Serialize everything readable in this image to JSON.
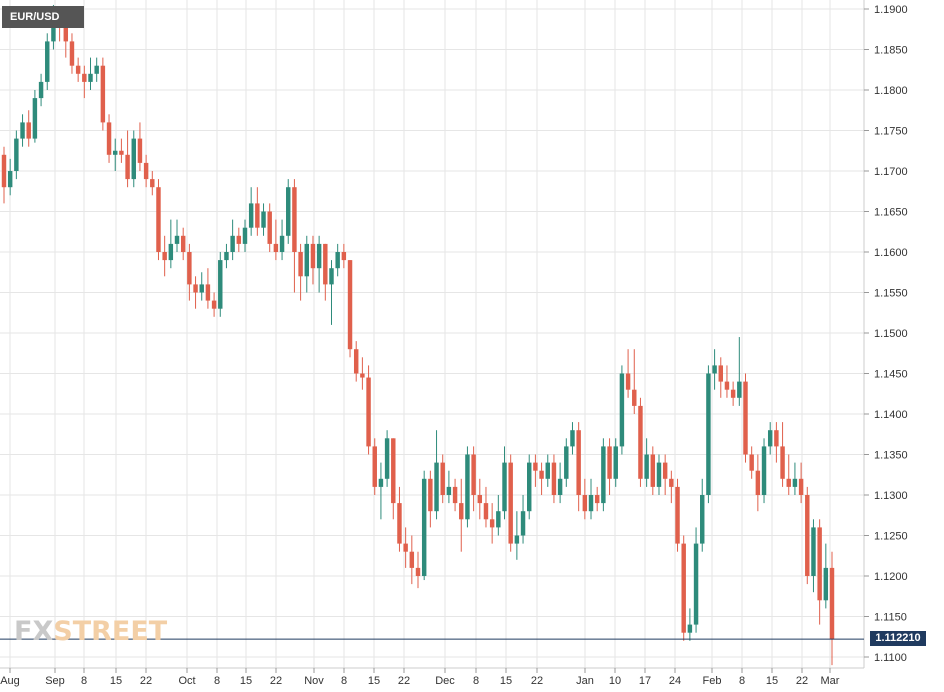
{
  "chart_data": {
    "type": "candlestick",
    "symbol": "EUR/USD",
    "ylim": [
      1.108,
      1.191
    ],
    "y_ticks": [
      "1.1900",
      "1.1850",
      "1.1800",
      "1.1750",
      "1.1700",
      "1.1650",
      "1.1600",
      "1.1550",
      "1.1500",
      "1.1450",
      "1.1400",
      "1.1350",
      "1.1300",
      "1.1250",
      "1.1200",
      "1.1150",
      "1.1100"
    ],
    "x_labels": [
      "Aug",
      "Sep",
      "8",
      "15",
      "22",
      "Oct",
      "8",
      "15",
      "22",
      "Nov",
      "8",
      "15",
      "22",
      "Dec",
      "8",
      "15",
      "22",
      "Jan",
      "10",
      "17",
      "24",
      "Feb",
      "8",
      "15",
      "22",
      "Mar"
    ],
    "last_price": "1.112210",
    "colors": {
      "up": "#2e8b7b",
      "down": "#e0604c",
      "grid": "#e6e6e6",
      "price_line": "#1f3a5f"
    },
    "candles": [
      [
        1.172,
        1.168,
        1.173,
        1.166
      ],
      [
        1.168,
        1.17,
        1.1715,
        1.167
      ],
      [
        1.17,
        1.174,
        1.175,
        1.169
      ],
      [
        1.174,
        1.176,
        1.177,
        1.173
      ],
      [
        1.176,
        1.174,
        1.1775,
        1.173
      ],
      [
        1.174,
        1.179,
        1.18,
        1.1735
      ],
      [
        1.179,
        1.181,
        1.182,
        1.178
      ],
      [
        1.181,
        1.186,
        1.187,
        1.18
      ],
      [
        1.186,
        1.189,
        1.1905,
        1.185
      ],
      [
        1.189,
        1.188,
        1.19,
        1.186
      ],
      [
        1.188,
        1.186,
        1.189,
        1.184
      ],
      [
        1.186,
        1.183,
        1.187,
        1.182
      ],
      [
        1.183,
        1.182,
        1.184,
        1.181
      ],
      [
        1.182,
        1.181,
        1.183,
        1.179
      ],
      [
        1.181,
        1.182,
        1.184,
        1.18
      ],
      [
        1.182,
        1.183,
        1.184,
        1.181
      ],
      [
        1.183,
        1.176,
        1.184,
        1.175
      ],
      [
        1.176,
        1.172,
        1.177,
        1.171
      ],
      [
        1.172,
        1.1725,
        1.174,
        1.17
      ],
      [
        1.1725,
        1.172,
        1.174,
        1.171
      ],
      [
        1.172,
        1.169,
        1.175,
        1.168
      ],
      [
        1.169,
        1.174,
        1.175,
        1.168
      ],
      [
        1.174,
        1.171,
        1.176,
        1.17
      ],
      [
        1.171,
        1.169,
        1.172,
        1.168
      ],
      [
        1.169,
        1.168,
        1.17,
        1.167
      ],
      [
        1.168,
        1.16,
        1.169,
        1.159
      ],
      [
        1.16,
        1.159,
        1.162,
        1.157
      ],
      [
        1.159,
        1.161,
        1.164,
        1.158
      ],
      [
        1.161,
        1.162,
        1.164,
        1.16
      ],
      [
        1.162,
        1.16,
        1.163,
        1.159
      ],
      [
        1.16,
        1.156,
        1.161,
        1.154
      ],
      [
        1.156,
        1.155,
        1.157,
        1.153
      ],
      [
        1.155,
        1.156,
        1.1575,
        1.154
      ],
      [
        1.156,
        1.154,
        1.158,
        1.153
      ],
      [
        1.154,
        1.153,
        1.155,
        1.152
      ],
      [
        1.153,
        1.159,
        1.16,
        1.152
      ],
      [
        1.159,
        1.16,
        1.161,
        1.158
      ],
      [
        1.16,
        1.162,
        1.164,
        1.159
      ],
      [
        1.162,
        1.161,
        1.163,
        1.16
      ],
      [
        1.161,
        1.163,
        1.164,
        1.16
      ],
      [
        1.163,
        1.166,
        1.168,
        1.162
      ],
      [
        1.166,
        1.163,
        1.168,
        1.162
      ],
      [
        1.163,
        1.165,
        1.166,
        1.162
      ],
      [
        1.165,
        1.161,
        1.166,
        1.16
      ],
      [
        1.161,
        1.16,
        1.164,
        1.159
      ],
      [
        1.16,
        1.162,
        1.164,
        1.159
      ],
      [
        1.162,
        1.168,
        1.169,
        1.161
      ],
      [
        1.168,
        1.16,
        1.169,
        1.155
      ],
      [
        1.16,
        1.157,
        1.161,
        1.154
      ],
      [
        1.157,
        1.161,
        1.162,
        1.155
      ],
      [
        1.161,
        1.158,
        1.162,
        1.156
      ],
      [
        1.158,
        1.161,
        1.162,
        1.155
      ],
      [
        1.161,
        1.156,
        1.161,
        1.154
      ],
      [
        1.156,
        1.158,
        1.159,
        1.151
      ],
      [
        1.158,
        1.16,
        1.161,
        1.157
      ],
      [
        1.16,
        1.159,
        1.161,
        1.158
      ],
      [
        1.159,
        1.148,
        1.159,
        1.147
      ],
      [
        1.148,
        1.145,
        1.149,
        1.144
      ],
      [
        1.145,
        1.1445,
        1.147,
        1.143
      ],
      [
        1.1445,
        1.136,
        1.146,
        1.135
      ],
      [
        1.136,
        1.131,
        1.137,
        1.13
      ],
      [
        1.131,
        1.132,
        1.134,
        1.127
      ],
      [
        1.132,
        1.137,
        1.138,
        1.131
      ],
      [
        1.137,
        1.129,
        1.137,
        1.127
      ],
      [
        1.129,
        1.124,
        1.131,
        1.123
      ],
      [
        1.124,
        1.123,
        1.126,
        1.121
      ],
      [
        1.123,
        1.121,
        1.125,
        1.119
      ],
      [
        1.121,
        1.12,
        1.123,
        1.1185
      ],
      [
        1.12,
        1.132,
        1.133,
        1.1195
      ],
      [
        1.132,
        1.128,
        1.133,
        1.126
      ],
      [
        1.128,
        1.134,
        1.138,
        1.127
      ],
      [
        1.134,
        1.13,
        1.135,
        1.129
      ],
      [
        1.13,
        1.131,
        1.133,
        1.129
      ],
      [
        1.131,
        1.129,
        1.132,
        1.128
      ],
      [
        1.129,
        1.127,
        1.132,
        1.123
      ],
      [
        1.127,
        1.135,
        1.136,
        1.126
      ],
      [
        1.135,
        1.13,
        1.136,
        1.128
      ],
      [
        1.13,
        1.129,
        1.132,
        1.127
      ],
      [
        1.129,
        1.127,
        1.131,
        1.126
      ],
      [
        1.127,
        1.126,
        1.129,
        1.124
      ],
      [
        1.126,
        1.128,
        1.13,
        1.125
      ],
      [
        1.128,
        1.134,
        1.136,
        1.127
      ],
      [
        1.134,
        1.124,
        1.135,
        1.123
      ],
      [
        1.124,
        1.125,
        1.128,
        1.122
      ],
      [
        1.125,
        1.128,
        1.13,
        1.124
      ],
      [
        1.128,
        1.134,
        1.135,
        1.127
      ],
      [
        1.134,
        1.133,
        1.135,
        1.131
      ],
      [
        1.133,
        1.132,
        1.134,
        1.13
      ],
      [
        1.132,
        1.134,
        1.135,
        1.131
      ],
      [
        1.134,
        1.13,
        1.135,
        1.129
      ],
      [
        1.13,
        1.132,
        1.134,
        1.129
      ],
      [
        1.132,
        1.136,
        1.137,
        1.131
      ],
      [
        1.136,
        1.138,
        1.139,
        1.135
      ],
      [
        1.138,
        1.13,
        1.139,
        1.128
      ],
      [
        1.13,
        1.128,
        1.132,
        1.127
      ],
      [
        1.128,
        1.13,
        1.132,
        1.127
      ],
      [
        1.13,
        1.129,
        1.131,
        1.128
      ],
      [
        1.129,
        1.136,
        1.137,
        1.128
      ],
      [
        1.136,
        1.132,
        1.137,
        1.13
      ],
      [
        1.132,
        1.136,
        1.137,
        1.131
      ],
      [
        1.136,
        1.145,
        1.146,
        1.135
      ],
      [
        1.145,
        1.143,
        1.148,
        1.142
      ],
      [
        1.143,
        1.141,
        1.148,
        1.14
      ],
      [
        1.141,
        1.132,
        1.142,
        1.131
      ],
      [
        1.132,
        1.135,
        1.137,
        1.131
      ],
      [
        1.135,
        1.131,
        1.136,
        1.13
      ],
      [
        1.131,
        1.134,
        1.135,
        1.13
      ],
      [
        1.134,
        1.132,
        1.135,
        1.13
      ],
      [
        1.132,
        1.131,
        1.133,
        1.129
      ],
      [
        1.131,
        1.124,
        1.132,
        1.123
      ],
      [
        1.124,
        1.113,
        1.125,
        1.112
      ],
      [
        1.113,
        1.114,
        1.116,
        1.112
      ],
      [
        1.114,
        1.124,
        1.126,
        1.113
      ],
      [
        1.124,
        1.13,
        1.132,
        1.123
      ],
      [
        1.13,
        1.145,
        1.146,
        1.129
      ],
      [
        1.145,
        1.146,
        1.148,
        1.143
      ],
      [
        1.146,
        1.144,
        1.147,
        1.142
      ],
      [
        1.144,
        1.143,
        1.146,
        1.142
      ],
      [
        1.143,
        1.142,
        1.144,
        1.141
      ],
      [
        1.142,
        1.144,
        1.1495,
        1.141
      ],
      [
        1.144,
        1.135,
        1.145,
        1.134
      ],
      [
        1.135,
        1.133,
        1.136,
        1.132
      ],
      [
        1.133,
        1.13,
        1.135,
        1.128
      ],
      [
        1.13,
        1.136,
        1.137,
        1.129
      ],
      [
        1.136,
        1.138,
        1.139,
        1.135
      ],
      [
        1.138,
        1.136,
        1.139,
        1.134
      ],
      [
        1.136,
        1.132,
        1.139,
        1.131
      ],
      [
        1.132,
        1.131,
        1.135,
        1.13
      ],
      [
        1.131,
        1.132,
        1.134,
        1.13
      ],
      [
        1.132,
        1.13,
        1.134,
        1.129
      ],
      [
        1.13,
        1.12,
        1.131,
        1.119
      ],
      [
        1.12,
        1.126,
        1.127,
        1.118
      ],
      [
        1.126,
        1.117,
        1.127,
        1.114
      ],
      [
        1.117,
        1.121,
        1.124,
        1.116
      ],
      [
        1.121,
        1.1122,
        1.123,
        1.109
      ]
    ]
  }
}
